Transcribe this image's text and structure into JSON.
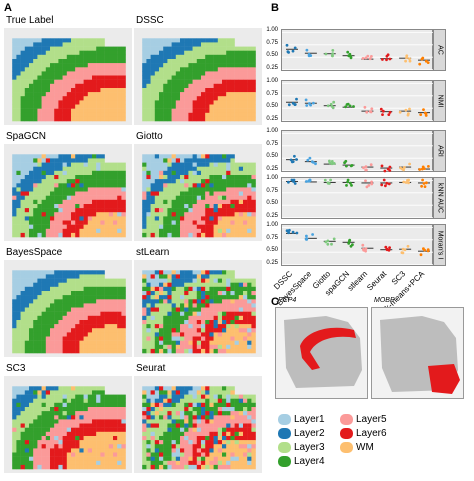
{
  "panel_letters": {
    "a": "A",
    "b": "B",
    "c": "C"
  },
  "tiles": [
    {
      "title": "True Label",
      "key": "truth"
    },
    {
      "title": "DSSC",
      "key": "dssc"
    },
    {
      "title": "SpaGCN",
      "key": "spagcn"
    },
    {
      "title": "Giotto",
      "key": "giotto"
    },
    {
      "title": "BayesSpace",
      "key": "bayes"
    },
    {
      "title": "stLearn",
      "key": "stlearn"
    },
    {
      "title": "SC3",
      "key": "sc3"
    },
    {
      "title": "Seurat",
      "key": "seurat"
    }
  ],
  "legend": [
    {
      "label": "Layer1",
      "color": "#a6cee3"
    },
    {
      "label": "Layer5",
      "color": "#fb9a99"
    },
    {
      "label": "Layer2",
      "color": "#1f78b4"
    },
    {
      "label": "Layer6",
      "color": "#e31a1c"
    },
    {
      "label": "Layer3",
      "color": "#b2df8a"
    },
    {
      "label": "WM",
      "color": "#fdbf6f"
    },
    {
      "label": "Layer4",
      "color": "#33a02c"
    }
  ],
  "chart_data": {
    "type": "scatter",
    "categories": [
      "DSSC",
      "BayesSpace",
      "Giotto",
      "spaGCN",
      "stlearn",
      "Seurat",
      "SC3",
      "k-means+PCA"
    ],
    "series_colors": [
      "#1f78b4",
      "#4aa3df",
      "#7fc97f",
      "#33a02c",
      "#fb9a99",
      "#e31a1c",
      "#fdbf6f",
      "#ff7f00"
    ],
    "yticks": [
      "0.25",
      "0.50",
      "0.75",
      "1.00"
    ],
    "ylim": [
      0.2,
      1.05
    ],
    "facets": [
      {
        "label": "AC",
        "medians": [
          0.66,
          0.58,
          0.57,
          0.53,
          0.46,
          0.47,
          0.48,
          0.44
        ]
      },
      {
        "label": "NMI",
        "medians": [
          0.62,
          0.6,
          0.55,
          0.52,
          0.44,
          0.43,
          0.44,
          0.41
        ]
      },
      {
        "label": "ARI",
        "medians": [
          0.47,
          0.43,
          0.38,
          0.36,
          0.32,
          0.3,
          0.32,
          0.28
        ]
      },
      {
        "label": "kNN AUC",
        "medians": [
          0.98,
          0.97,
          0.96,
          0.96,
          0.95,
          0.95,
          0.96,
          0.95
        ]
      },
      {
        "label": "Moran's I",
        "medians": [
          0.88,
          0.78,
          0.72,
          0.7,
          0.58,
          0.55,
          0.56,
          0.52
        ]
      }
    ]
  },
  "genes": [
    {
      "label": "PCP4"
    },
    {
      "label": "MOBP"
    }
  ]
}
